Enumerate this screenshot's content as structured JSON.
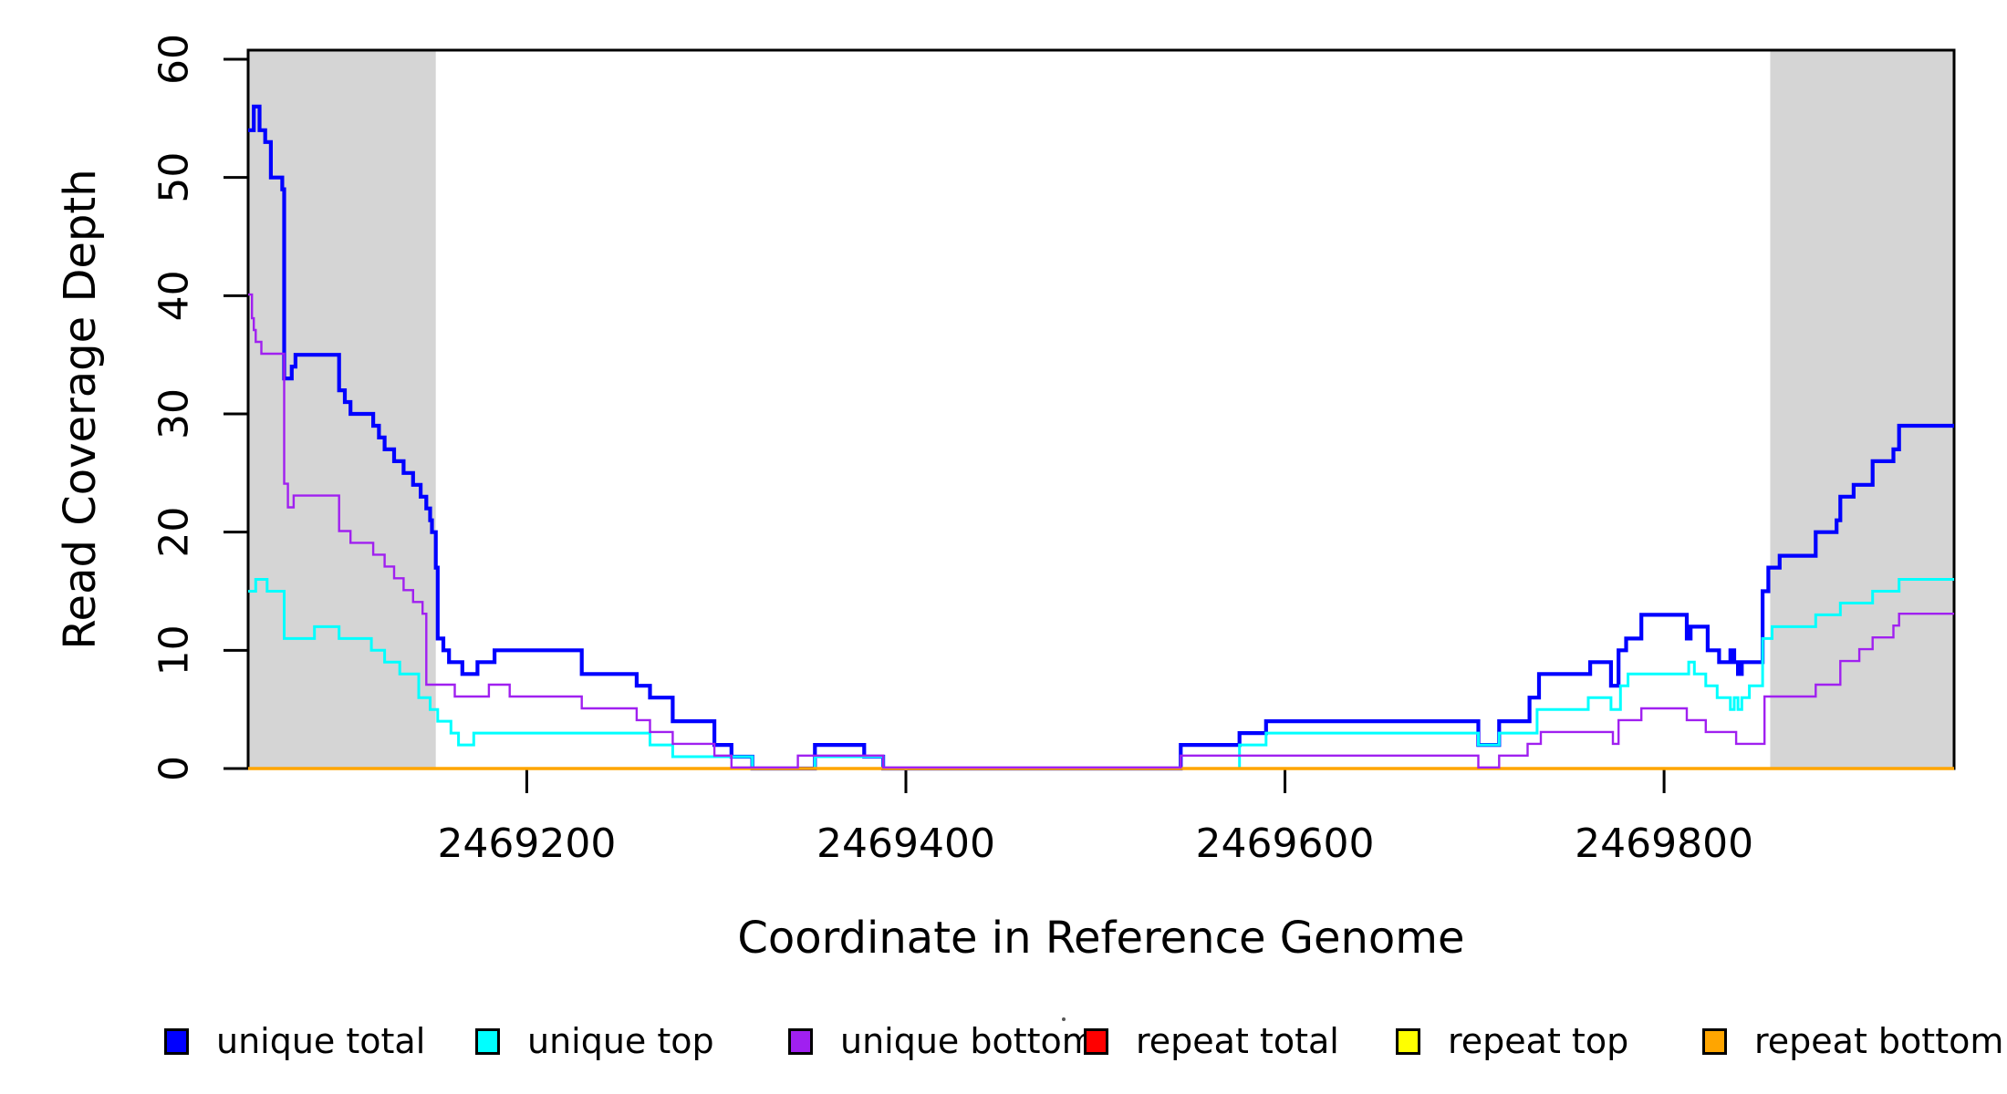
{
  "axes": {
    "x_label": "Coordinate in Reference Genome",
    "y_label": "Read Coverage Depth"
  },
  "legend": {
    "items": [
      {
        "label": "unique total",
        "color": "#0000FF"
      },
      {
        "label": "unique top",
        "color": "#00FFFF"
      },
      {
        "label": "unique bottom",
        "color": "#A020F0"
      },
      {
        "label": "repeat total",
        "color": "#FF0000"
      },
      {
        "label": "repeat top",
        "color": "#FFFF00"
      },
      {
        "label": "repeat bottom",
        "color": "#FFA500"
      }
    ]
  },
  "chart_data": {
    "type": "line",
    "subtype": "step-coverage",
    "title": "",
    "xlabel": "Coordinate in Reference Genome",
    "ylabel": "Read Coverage Depth",
    "xlim": [
      2469053,
      2469953
    ],
    "ylim": [
      0,
      60
    ],
    "x_ticks": [
      2469200,
      2469400,
      2469600,
      2469800
    ],
    "y_ticks": [
      0,
      10,
      20,
      30,
      40,
      50,
      60
    ],
    "grid": false,
    "legend_position": "bottom",
    "highlight_regions": [
      {
        "x0": 2469053,
        "x1": 2469152,
        "color": "#D5D5D5"
      },
      {
        "x0": 2469856,
        "x1": 2469953,
        "color": "#D5D5D5"
      }
    ],
    "draw_order": [
      "unique total",
      "unique top",
      "repeat total",
      "repeat top",
      "repeat bottom",
      "unique bottom"
    ],
    "series": [
      {
        "name": "unique total",
        "color": "#0000FF",
        "width": 4.2,
        "points": [
          [
            2469053,
            54
          ],
          [
            2469056,
            56
          ],
          [
            2469059,
            54
          ],
          [
            2469062,
            53
          ],
          [
            2469065,
            50
          ],
          [
            2469071,
            49
          ],
          [
            2469072,
            33
          ],
          [
            2469076,
            34
          ],
          [
            2469078,
            35
          ],
          [
            2469101,
            32
          ],
          [
            2469104,
            31
          ],
          [
            2469107,
            30
          ],
          [
            2469119,
            29
          ],
          [
            2469122,
            28
          ],
          [
            2469125,
            27
          ],
          [
            2469130,
            26
          ],
          [
            2469135,
            25
          ],
          [
            2469140,
            24
          ],
          [
            2469144,
            23
          ],
          [
            2469147,
            22
          ],
          [
            2469149,
            21
          ],
          [
            2469150,
            20
          ],
          [
            2469152,
            17
          ],
          [
            2469153,
            11
          ],
          [
            2469156,
            10
          ],
          [
            2469159,
            9
          ],
          [
            2469166,
            8
          ],
          [
            2469174,
            9
          ],
          [
            2469183,
            10
          ],
          [
            2469229,
            8
          ],
          [
            2469258,
            7
          ],
          [
            2469265,
            6
          ],
          [
            2469277,
            4
          ],
          [
            2469299,
            2
          ],
          [
            2469308,
            1
          ],
          [
            2469319,
            0
          ],
          [
            2469352,
            2
          ],
          [
            2469378,
            1
          ],
          [
            2469388,
            0
          ],
          [
            2469545,
            2
          ],
          [
            2469576,
            3
          ],
          [
            2469590,
            4
          ],
          [
            2469702,
            2
          ],
          [
            2469713,
            4
          ],
          [
            2469729,
            6
          ],
          [
            2469734,
            8
          ],
          [
            2469761,
            9
          ],
          [
            2469772,
            7
          ],
          [
            2469776,
            10
          ],
          [
            2469780,
            11
          ],
          [
            2469788,
            13
          ],
          [
            2469812,
            11
          ],
          [
            2469814,
            12
          ],
          [
            2469823,
            10
          ],
          [
            2469829,
            9
          ],
          [
            2469835,
            10
          ],
          [
            2469837,
            9
          ],
          [
            2469839,
            8
          ],
          [
            2469841,
            9
          ],
          [
            2469852,
            15
          ],
          [
            2469855,
            17
          ],
          [
            2469861,
            18
          ],
          [
            2469880,
            20
          ],
          [
            2469891,
            21
          ],
          [
            2469893,
            23
          ],
          [
            2469900,
            24
          ],
          [
            2469910,
            26
          ],
          [
            2469921,
            27
          ],
          [
            2469924,
            29
          ]
        ]
      },
      {
        "name": "unique top",
        "color": "#00FFFF",
        "width": 3,
        "points": [
          [
            2469053,
            15
          ],
          [
            2469057,
            16
          ],
          [
            2469063,
            15
          ],
          [
            2469072,
            11
          ],
          [
            2469088,
            12
          ],
          [
            2469101,
            11
          ],
          [
            2469118,
            10
          ],
          [
            2469125,
            9
          ],
          [
            2469133,
            8
          ],
          [
            2469143,
            6
          ],
          [
            2469149,
            5
          ],
          [
            2469153,
            4
          ],
          [
            2469160,
            3
          ],
          [
            2469164,
            2
          ],
          [
            2469172,
            3
          ],
          [
            2469265,
            2
          ],
          [
            2469277,
            1
          ],
          [
            2469319,
            0
          ],
          [
            2469352,
            1
          ],
          [
            2469388,
            0
          ],
          [
            2469576,
            2
          ],
          [
            2469590,
            3
          ],
          [
            2469702,
            2
          ],
          [
            2469713,
            3
          ],
          [
            2469733,
            5
          ],
          [
            2469760,
            6
          ],
          [
            2469772,
            5
          ],
          [
            2469777,
            7
          ],
          [
            2469781,
            8
          ],
          [
            2469813,
            9
          ],
          [
            2469816,
            8
          ],
          [
            2469822,
            7
          ],
          [
            2469828,
            6
          ],
          [
            2469835,
            5
          ],
          [
            2469837,
            6
          ],
          [
            2469839,
            5
          ],
          [
            2469841,
            6
          ],
          [
            2469845,
            7
          ],
          [
            2469852,
            11
          ],
          [
            2469857,
            12
          ],
          [
            2469880,
            13
          ],
          [
            2469893,
            14
          ],
          [
            2469910,
            15
          ],
          [
            2469924,
            16
          ]
        ]
      },
      {
        "name": "unique bottom",
        "color": "#A020F0",
        "width": 2.4,
        "points": [
          [
            2469053,
            40
          ],
          [
            2469055,
            38
          ],
          [
            2469056,
            37
          ],
          [
            2469057,
            36
          ],
          [
            2469060,
            35
          ],
          [
            2469072,
            24
          ],
          [
            2469074,
            22
          ],
          [
            2469077,
            23
          ],
          [
            2469101,
            20
          ],
          [
            2469107,
            19
          ],
          [
            2469119,
            18
          ],
          [
            2469125,
            17
          ],
          [
            2469130,
            16
          ],
          [
            2469135,
            15
          ],
          [
            2469140,
            14
          ],
          [
            2469145,
            13
          ],
          [
            2469147,
            7
          ],
          [
            2469162,
            6
          ],
          [
            2469180,
            7
          ],
          [
            2469191,
            6
          ],
          [
            2469229,
            5
          ],
          [
            2469258,
            4
          ],
          [
            2469265,
            3
          ],
          [
            2469277,
            2
          ],
          [
            2469299,
            1
          ],
          [
            2469308,
            0
          ],
          [
            2469343,
            1
          ],
          [
            2469388,
            0
          ],
          [
            2469545,
            1
          ],
          [
            2469702,
            0
          ],
          [
            2469713,
            1
          ],
          [
            2469728,
            2
          ],
          [
            2469735,
            3
          ],
          [
            2469773,
            2
          ],
          [
            2469776,
            4
          ],
          [
            2469788,
            5
          ],
          [
            2469812,
            4
          ],
          [
            2469822,
            3
          ],
          [
            2469838,
            2
          ],
          [
            2469853,
            6
          ],
          [
            2469880,
            7
          ],
          [
            2469893,
            9
          ],
          [
            2469903,
            10
          ],
          [
            2469910,
            11
          ],
          [
            2469921,
            12
          ],
          [
            2469924,
            13
          ]
        ]
      },
      {
        "name": "repeat total",
        "color": "#FF0000",
        "width": 2.5,
        "points": [
          [
            2469053,
            0
          ]
        ]
      },
      {
        "name": "repeat top",
        "color": "#FFFF00",
        "width": 2.5,
        "points": [
          [
            2469053,
            0
          ]
        ]
      },
      {
        "name": "repeat bottom",
        "color": "#FFA500",
        "width": 3.6,
        "points": [
          [
            2469053,
            0
          ]
        ]
      }
    ]
  }
}
